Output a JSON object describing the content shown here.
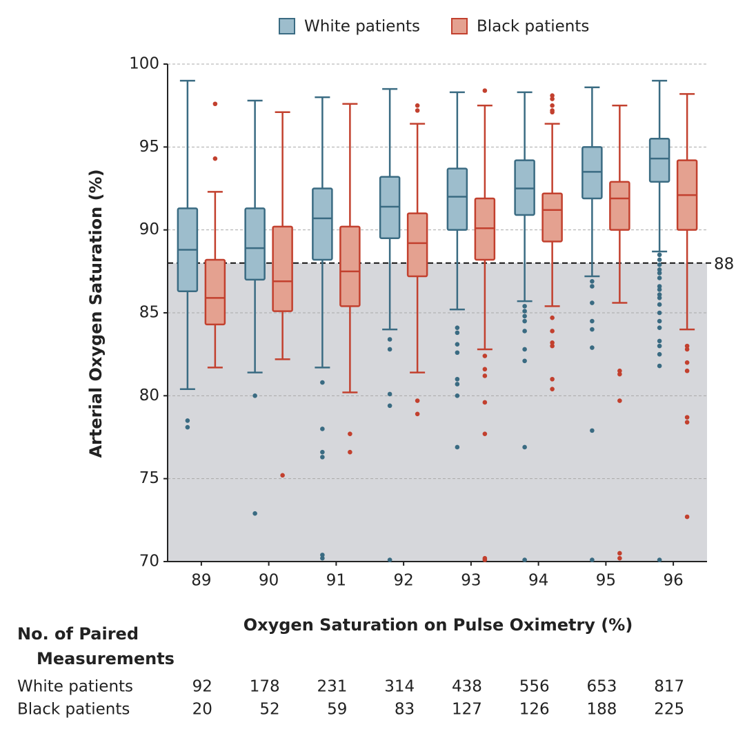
{
  "chart_data": {
    "type": "box",
    "categories": [
      "89",
      "90",
      "91",
      "92",
      "93",
      "94",
      "95",
      "96"
    ],
    "xlabel": "Oxygen Saturation on Pulse Oximetry (%)",
    "ylabel": "Arterial Oxygen Saturation (%)",
    "ylim": [
      70,
      100
    ],
    "yticks": [
      70,
      75,
      80,
      85,
      90,
      95,
      100
    ],
    "grid": true,
    "legend": "top",
    "reference_line": 88,
    "series": [
      {
        "name": "White patients",
        "color": "#3a6b82",
        "fill": "#9dbdcc",
        "whisker_low": [
          80.4,
          81.4,
          81.7,
          84.0,
          85.2,
          85.7,
          87.2,
          88.7
        ],
        "q1": [
          86.3,
          87.0,
          88.2,
          89.5,
          90.0,
          90.9,
          91.9,
          92.9
        ],
        "median": [
          88.8,
          88.9,
          90.7,
          91.4,
          92.0,
          92.5,
          93.5,
          94.3
        ],
        "q3": [
          91.3,
          91.3,
          92.5,
          93.2,
          93.7,
          94.2,
          95.0,
          95.5
        ],
        "whisker_high": [
          99.0,
          97.8,
          98.0,
          98.5,
          98.3,
          98.3,
          98.6,
          99.0
        ],
        "outliers": [
          [
            78.5,
            78.1
          ],
          [
            80.0,
            72.9
          ],
          [
            80.8,
            78.0,
            76.6,
            76.3,
            70.4,
            70.2
          ],
          [
            83.4,
            82.8,
            80.1,
            79.4,
            70.1
          ],
          [
            84.1,
            83.8,
            83.1,
            82.6,
            81.0,
            80.7,
            80.0,
            76.9
          ],
          [
            85.4,
            85.1,
            84.8,
            84.5,
            83.9,
            82.8,
            82.1,
            76.9,
            70.1
          ],
          [
            86.9,
            86.6,
            85.6,
            84.5,
            84.0,
            82.9,
            77.9,
            70.1
          ],
          [
            88.5,
            88.2,
            87.9,
            87.6,
            87.4,
            87.1,
            86.6,
            86.4,
            86.1,
            85.9,
            85.5,
            85.0,
            84.5,
            84.1,
            83.3,
            83.0,
            82.5,
            81.8,
            70.1
          ]
        ]
      },
      {
        "name": "Black patients",
        "color": "#c2402e",
        "fill": "#e4a190",
        "whisker_low": [
          81.7,
          82.2,
          80.2,
          81.4,
          82.8,
          85.4,
          85.6,
          84.0
        ],
        "q1": [
          84.3,
          85.1,
          85.4,
          87.2,
          88.2,
          89.3,
          90.0,
          90.0
        ],
        "median": [
          85.9,
          86.9,
          87.5,
          89.2,
          90.1,
          91.2,
          91.9,
          92.1
        ],
        "q3": [
          88.2,
          90.2,
          90.2,
          91.0,
          91.9,
          92.2,
          92.9,
          94.2
        ],
        "whisker_high": [
          92.3,
          97.1,
          97.6,
          96.4,
          97.5,
          96.4,
          97.5,
          98.2
        ],
        "outliers": [
          [
            97.6,
            94.3
          ],
          [
            75.2
          ],
          [
            77.7,
            76.6
          ],
          [
            97.5,
            97.2,
            79.7,
            78.9
          ],
          [
            98.4,
            82.4,
            81.6,
            81.2,
            79.6,
            77.7,
            70.2,
            70.1
          ],
          [
            98.1,
            97.9,
            97.5,
            97.2,
            97.1,
            84.7,
            83.9,
            83.2,
            83.0,
            81.0,
            80.4
          ],
          [
            81.5,
            81.3,
            79.7,
            70.5,
            70.2
          ],
          [
            83.0,
            82.8,
            82.0,
            81.5,
            78.7,
            78.4,
            72.7
          ]
        ]
      }
    ]
  },
  "table": {
    "title": [
      "No. of Paired",
      "Measurements"
    ],
    "rows": [
      {
        "name": "White patients",
        "values": [
          92,
          178,
          231,
          314,
          438,
          556,
          653,
          817
        ]
      },
      {
        "name": "Black patients",
        "values": [
          20,
          52,
          59,
          83,
          127,
          126,
          188,
          225
        ]
      }
    ]
  }
}
